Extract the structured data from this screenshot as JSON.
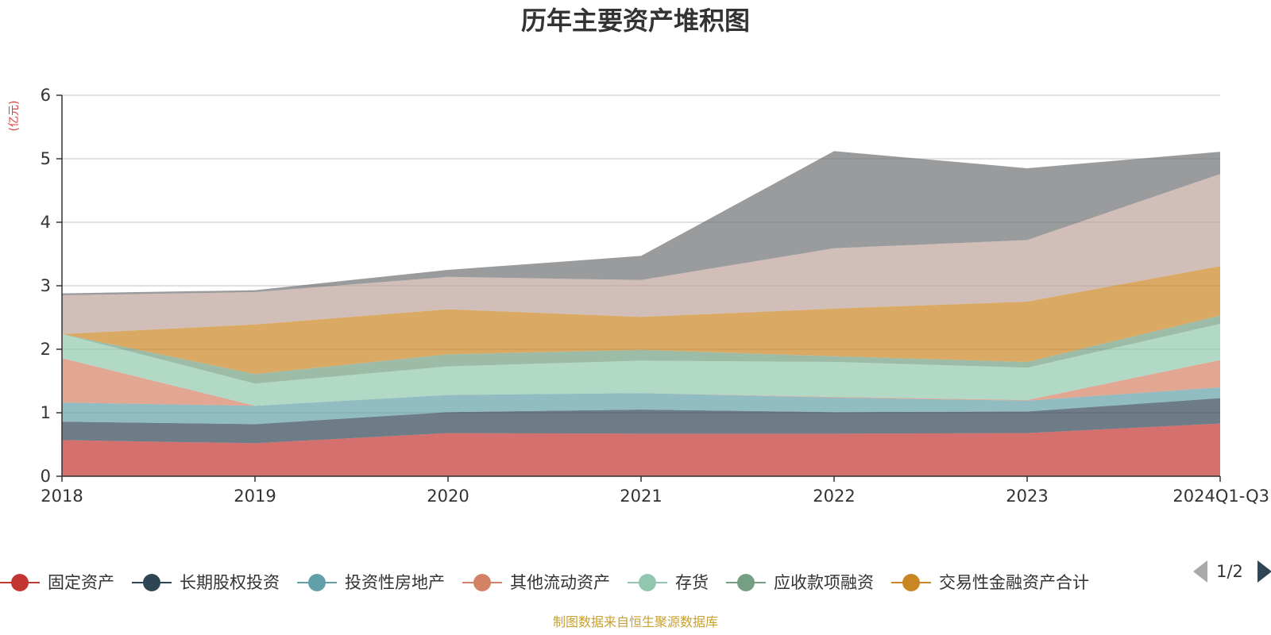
{
  "chart_data": {
    "type": "area",
    "stacked": true,
    "title": "历年主要资产堆积图",
    "ylabel": "(亿元)",
    "categories": [
      "2018",
      "2019",
      "2020",
      "2021",
      "2022",
      "2023",
      "2024Q1-Q3"
    ],
    "ylim": [
      0,
      6
    ],
    "yticks": [
      0,
      1,
      2,
      3,
      4,
      5,
      6
    ],
    "grid": true,
    "series": [
      {
        "name": "固定资产",
        "color": "#c23531",
        "values": [
          0.57,
          0.52,
          0.68,
          0.67,
          0.67,
          0.68,
          0.83
        ]
      },
      {
        "name": "长期股权投资",
        "color": "#2f4554",
        "values": [
          0.29,
          0.3,
          0.33,
          0.38,
          0.34,
          0.34,
          0.4
        ]
      },
      {
        "name": "投资性房地产",
        "color": "#61a0a8",
        "values": [
          0.3,
          0.29,
          0.27,
          0.26,
          0.23,
          0.17,
          0.17
        ]
      },
      {
        "name": "其他流动资产",
        "color": "#d48265",
        "values": [
          0.7,
          0.0,
          0.0,
          0.0,
          0.01,
          0.01,
          0.43
        ]
      },
      {
        "name": "存货",
        "color": "#91c7ae",
        "values": [
          0.38,
          0.35,
          0.45,
          0.51,
          0.55,
          0.51,
          0.57
        ]
      },
      {
        "name": "应收款项融资",
        "color": "#749f83",
        "values": [
          0.0,
          0.15,
          0.19,
          0.17,
          0.09,
          0.09,
          0.13
        ]
      },
      {
        "name": "交易性金融资产合计",
        "color": "#ca8622",
        "values": [
          0.0,
          0.78,
          0.71,
          0.52,
          0.75,
          0.95,
          0.78
        ]
      },
      {
        "name": "",
        "color": "#bda29a",
        "values": [
          0.61,
          0.51,
          0.51,
          0.58,
          0.95,
          0.97,
          1.45
        ]
      },
      {
        "name": "",
        "color": "#6e7074",
        "values": [
          0.03,
          0.03,
          0.11,
          0.38,
          1.53,
          1.13,
          0.35
        ]
      }
    ],
    "legend": {
      "position": "bottom",
      "page": "1/2"
    },
    "source_note": "制图数据来自恒生聚源数据库"
  }
}
